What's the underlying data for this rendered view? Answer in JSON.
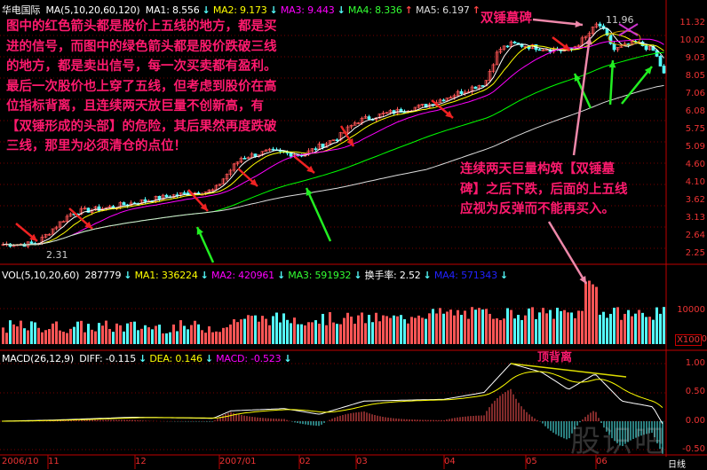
{
  "price_header": {
    "stock": "华电国际",
    "ma_label": "MA(5,10,20,60,120)",
    "ma1": "MA1: 8.556",
    "ma2": "MA2: 9.173",
    "ma3": "MA3: 9.443",
    "ma4": "MA4: 8.336",
    "ma5": "MA5: 6.197"
  },
  "vol_header": {
    "label": "VOL(5,10,20,60)",
    "vol": "287779",
    "ma1": "MA1: 336224",
    "ma2": "MA2: 420961",
    "ma3": "MA3: 591932",
    "turnover": "换手率: 2.52",
    "ma4": "MA4: 571343"
  },
  "macd_header": {
    "label": "MACD(26,12,9)",
    "diff": "DIFF: -0.115",
    "dea": "DEA: 0.146",
    "macd": "MACD: -0.523"
  },
  "annotations": {
    "left_lines": [
      "图中的红色箭头都是股价上五线的地方，都是买",
      "进的信号，而图中的绿色箭头都是股价跌破三线",
      "的地方，都是卖出信号，每一次买卖都有盈利。",
      "最后一次股价也上穿了五线，但考虑到股价在高",
      "位指标背离，且连续两天放巨量不创新高，有",
      "【双锤形成的头部】的危险，其后果然再度跌破",
      "三线，那里为必须清仓的点位！"
    ],
    "hammer": "双锤墓碑",
    "right_lines": [
      "连续两天巨量构筑【双锤墓",
      "碑】之后下跌，后面的上五线",
      "应视为反弹而不能再买入。"
    ],
    "divergence": "顶背离"
  },
  "price_marks": {
    "high": "11.96",
    "low": "2.31"
  },
  "price_axis": [
    "11.32",
    "10.02",
    "9.03",
    "8.05",
    "7.06",
    "6.08",
    "5.75",
    "5.09",
    "4.60",
    "4.10",
    "3.62",
    "3.13",
    "2.64",
    "2.25"
  ],
  "vol_axis": [
    "10000",
    "X100",
    "0"
  ],
  "macd_axis": [
    "1.00",
    "0.50",
    "0.00",
    "-0.50"
  ],
  "dates": [
    "2006/10",
    "11",
    "12",
    "2007/01",
    "02",
    "03",
    "04",
    "05",
    "06",
    "日线"
  ],
  "watermark": "股识吧",
  "colors": {
    "up": "#ff5555",
    "down": "#54fcfc",
    "ma1": "#ffffff",
    "ma2": "#ffff00",
    "ma3": "#ff00ff",
    "ma4": "#00ff00",
    "ma5": "#dddddd",
    "annotation": "#ff1a6e",
    "grid": "#c00000"
  }
}
